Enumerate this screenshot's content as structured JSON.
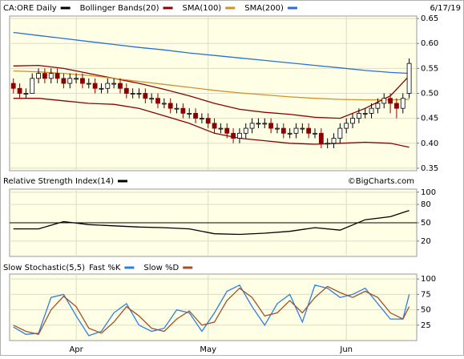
{
  "chart_data": [
    {
      "type": "candlestick",
      "title": "CA:ORE Daily",
      "date": "6/17/19",
      "color": "#000000",
      "up_color": "#ffffff",
      "down_color": "#8b0000",
      "categories": [
        null,
        null,
        null,
        null,
        null,
        null,
        null,
        null,
        null,
        null,
        "Apr",
        null,
        null,
        null,
        null,
        null,
        null,
        null,
        null,
        null,
        null,
        null,
        null,
        null,
        null,
        null,
        null,
        null,
        null,
        null,
        null,
        "May",
        null,
        null,
        null,
        null,
        null,
        null,
        null,
        null,
        null,
        null,
        null,
        null,
        null,
        null,
        null,
        null,
        null,
        null,
        null,
        null,
        null,
        "Jun",
        null,
        null,
        null,
        null,
        null,
        null,
        null,
        null,
        null,
        null
      ],
      "open": [
        0.52,
        0.51,
        0.5,
        0.5,
        0.53,
        0.54,
        0.53,
        0.54,
        0.53,
        0.52,
        0.53,
        0.53,
        0.52,
        0.52,
        0.51,
        0.51,
        0.52,
        0.52,
        0.51,
        0.5,
        0.5,
        0.5,
        0.49,
        0.49,
        0.48,
        0.48,
        0.47,
        0.47,
        0.46,
        0.46,
        0.45,
        0.45,
        0.44,
        0.43,
        0.43,
        0.42,
        0.41,
        0.42,
        0.43,
        0.44,
        0.44,
        0.44,
        0.43,
        0.43,
        0.42,
        0.42,
        0.43,
        0.43,
        0.42,
        0.42,
        0.4,
        0.4,
        0.41,
        0.43,
        0.44,
        0.45,
        0.46,
        0.46,
        0.47,
        0.48,
        0.49,
        0.48,
        0.47,
        0.5
      ],
      "high": [
        0.53,
        0.52,
        0.51,
        0.54,
        0.55,
        0.55,
        0.55,
        0.55,
        0.54,
        0.54,
        0.54,
        0.54,
        0.53,
        0.53,
        0.52,
        0.53,
        0.53,
        0.53,
        0.52,
        0.51,
        0.51,
        0.51,
        0.5,
        0.5,
        0.49,
        0.49,
        0.48,
        0.48,
        0.47,
        0.47,
        0.46,
        0.46,
        0.45,
        0.44,
        0.44,
        0.43,
        0.43,
        0.44,
        0.45,
        0.45,
        0.45,
        0.45,
        0.44,
        0.44,
        0.43,
        0.44,
        0.44,
        0.44,
        0.43,
        0.43,
        0.41,
        0.42,
        0.44,
        0.45,
        0.46,
        0.47,
        0.47,
        0.48,
        0.49,
        0.5,
        0.5,
        0.49,
        0.5,
        0.57
      ],
      "low": [
        0.5,
        0.49,
        0.49,
        0.5,
        0.52,
        0.52,
        0.52,
        0.52,
        0.51,
        0.51,
        0.52,
        0.51,
        0.51,
        0.5,
        0.5,
        0.5,
        0.51,
        0.5,
        0.49,
        0.49,
        0.49,
        0.48,
        0.48,
        0.47,
        0.47,
        0.46,
        0.46,
        0.45,
        0.45,
        0.44,
        0.44,
        0.43,
        0.42,
        0.42,
        0.41,
        0.4,
        0.4,
        0.41,
        0.42,
        0.43,
        0.43,
        0.42,
        0.42,
        0.41,
        0.41,
        0.41,
        0.42,
        0.41,
        0.41,
        0.39,
        0.39,
        0.39,
        0.4,
        0.42,
        0.43,
        0.44,
        0.45,
        0.45,
        0.46,
        0.47,
        0.46,
        0.45,
        0.46,
        0.49
      ],
      "close": [
        0.51,
        0.5,
        0.5,
        0.53,
        0.54,
        0.53,
        0.54,
        0.53,
        0.52,
        0.53,
        0.53,
        0.52,
        0.52,
        0.51,
        0.51,
        0.52,
        0.52,
        0.51,
        0.5,
        0.5,
        0.5,
        0.49,
        0.49,
        0.48,
        0.48,
        0.47,
        0.47,
        0.46,
        0.46,
        0.45,
        0.45,
        0.44,
        0.43,
        0.43,
        0.42,
        0.41,
        0.42,
        0.43,
        0.44,
        0.44,
        0.44,
        0.43,
        0.43,
        0.42,
        0.42,
        0.43,
        0.43,
        0.42,
        0.42,
        0.4,
        0.4,
        0.41,
        0.43,
        0.44,
        0.45,
        0.46,
        0.46,
        0.47,
        0.48,
        0.49,
        0.48,
        0.47,
        0.49,
        0.56
      ],
      "series": [
        {
          "name": "Bollinger Bands(20)",
          "color": "#8b0000",
          "x": [
            0,
            4,
            8,
            12,
            16,
            20,
            24,
            28,
            32,
            36,
            40,
            44,
            48,
            52,
            56,
            60,
            63
          ],
          "upper": [
            0.555,
            0.556,
            0.55,
            0.54,
            0.53,
            0.52,
            0.508,
            0.495,
            0.48,
            0.468,
            0.462,
            0.458,
            0.452,
            0.45,
            0.47,
            0.495,
            0.535
          ],
          "lower": [
            0.49,
            0.49,
            0.485,
            0.48,
            0.478,
            0.47,
            0.455,
            0.44,
            0.42,
            0.41,
            0.405,
            0.4,
            0.398,
            0.4,
            0.402,
            0.4,
            0.392
          ]
        },
        {
          "name": "SMA(100)",
          "color": "#d4902a",
          "x": [
            0,
            4,
            8,
            12,
            16,
            20,
            24,
            28,
            32,
            36,
            40,
            44,
            48,
            52,
            56,
            60,
            63
          ],
          "values": [
            0.545,
            0.543,
            0.54,
            0.536,
            0.53,
            0.524,
            0.518,
            0.512,
            0.506,
            0.501,
            0.497,
            0.493,
            0.49,
            0.488,
            0.487,
            0.487,
            0.488
          ]
        },
        {
          "name": "SMA(200)",
          "color": "#2a6fd6",
          "x": [
            0,
            4,
            8,
            12,
            16,
            20,
            24,
            28,
            32,
            36,
            40,
            44,
            48,
            52,
            56,
            60,
            63
          ],
          "values": [
            0.622,
            0.616,
            0.61,
            0.604,
            0.598,
            0.592,
            0.587,
            0.581,
            0.576,
            0.571,
            0.566,
            0.561,
            0.556,
            0.551,
            0.546,
            0.542,
            0.54
          ]
        }
      ],
      "xlim": [
        -0.6,
        64.2
      ],
      "ylim": [
        0.345,
        0.655
      ],
      "yticks": [
        0.35,
        {
          "value": 0.4,
          "label": "0.40"
        },
        0.45,
        {
          "value": 0.5,
          "label": "0.50"
        },
        0.55,
        {
          "value": 0.6,
          "label": "0.60"
        },
        0.65
      ],
      "grid": true
    },
    {
      "type": "line",
      "title": "Relative Strength Index(14)",
      "annotation": "©BigCharts.com",
      "series": [
        {
          "color": "#000000",
          "x": [
            0,
            4,
            8,
            12,
            16,
            20,
            24,
            28,
            32,
            36,
            40,
            44,
            48,
            52,
            56,
            60,
            63
          ],
          "values": [
            40,
            40,
            52,
            47,
            45,
            43,
            42,
            40,
            32,
            31,
            33,
            36,
            42,
            38,
            55,
            60,
            70
          ]
        }
      ],
      "reference_line": 50,
      "xlim": [
        -0.6,
        64.2
      ],
      "ylim": [
        -5,
        105
      ],
      "yticks": [
        20,
        50,
        80,
        100
      ],
      "grid": true
    },
    {
      "type": "line",
      "title": "Slow Stochastic(5,5)",
      "series": [
        {
          "name": "Fast %K",
          "color": "#2a7fe0",
          "x": [
            0,
            2,
            4,
            6,
            8,
            10,
            12,
            14,
            16,
            18,
            20,
            22,
            24,
            26,
            28,
            30,
            32,
            34,
            36,
            38,
            40,
            42,
            44,
            46,
            48,
            50,
            52,
            54,
            56,
            58,
            60,
            62,
            63
          ],
          "values": [
            22,
            10,
            12,
            70,
            75,
            40,
            8,
            15,
            45,
            60,
            25,
            15,
            20,
            50,
            45,
            15,
            45,
            80,
            90,
            55,
            25,
            60,
            75,
            30,
            90,
            85,
            70,
            75,
            85,
            60,
            35,
            35,
            75
          ]
        },
        {
          "name": "Slow %D",
          "color": "#a0522d",
          "x": [
            0,
            2,
            4,
            6,
            8,
            10,
            12,
            14,
            16,
            18,
            20,
            22,
            24,
            26,
            28,
            30,
            32,
            34,
            36,
            38,
            40,
            42,
            44,
            46,
            48,
            50,
            52,
            54,
            56,
            58,
            60,
            62,
            63
          ],
          "values": [
            25,
            15,
            10,
            50,
            72,
            55,
            20,
            12,
            30,
            55,
            40,
            20,
            15,
            35,
            48,
            25,
            30,
            65,
            85,
            70,
            40,
            45,
            65,
            45,
            70,
            88,
            78,
            70,
            80,
            70,
            45,
            35,
            55
          ]
        }
      ],
      "xlim": [
        -0.6,
        64.2
      ],
      "ylim": [
        0,
        108
      ],
      "yticks": [
        25,
        50,
        75,
        100
      ],
      "grid": true
    }
  ]
}
